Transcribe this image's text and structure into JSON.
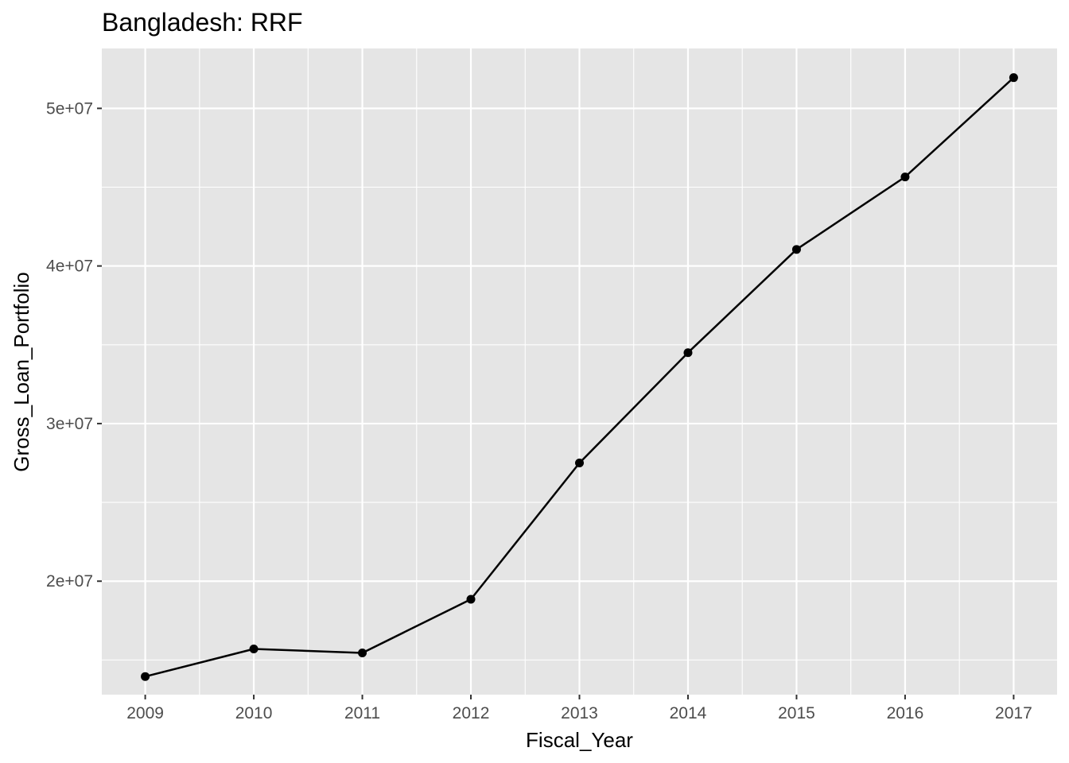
{
  "chart_data": {
    "type": "line",
    "title": "Bangladesh:  RRF",
    "xlabel": "Fiscal_Year",
    "ylabel": "Gross_Loan_Portfolio",
    "x": [
      2009,
      2010,
      2011,
      2012,
      2013,
      2014,
      2015,
      2016,
      2017
    ],
    "x_tick_labels": [
      "2009",
      "2010",
      "2011",
      "2012",
      "2013",
      "2014",
      "2015",
      "2016",
      "2017"
    ],
    "series": [
      {
        "values": [
          13950000,
          15700000,
          15450000,
          18850000,
          27500000,
          34500000,
          41050000,
          45650000,
          51950000
        ],
        "color": "#000000",
        "markers": true
      }
    ],
    "y_ticks": [
      20000000,
      30000000,
      40000000,
      50000000
    ],
    "y_tick_labels": [
      "2e+07",
      "3e+07",
      "4e+07",
      "5e+07"
    ],
    "xlim": [
      2008.6,
      2017.4
    ],
    "ylim": [
      12800000,
      53800000
    ],
    "grid": true,
    "panel_background": "#e5e5e5",
    "grid_color": "#ffffff",
    "tick_label_color": "#4d4d4d"
  }
}
